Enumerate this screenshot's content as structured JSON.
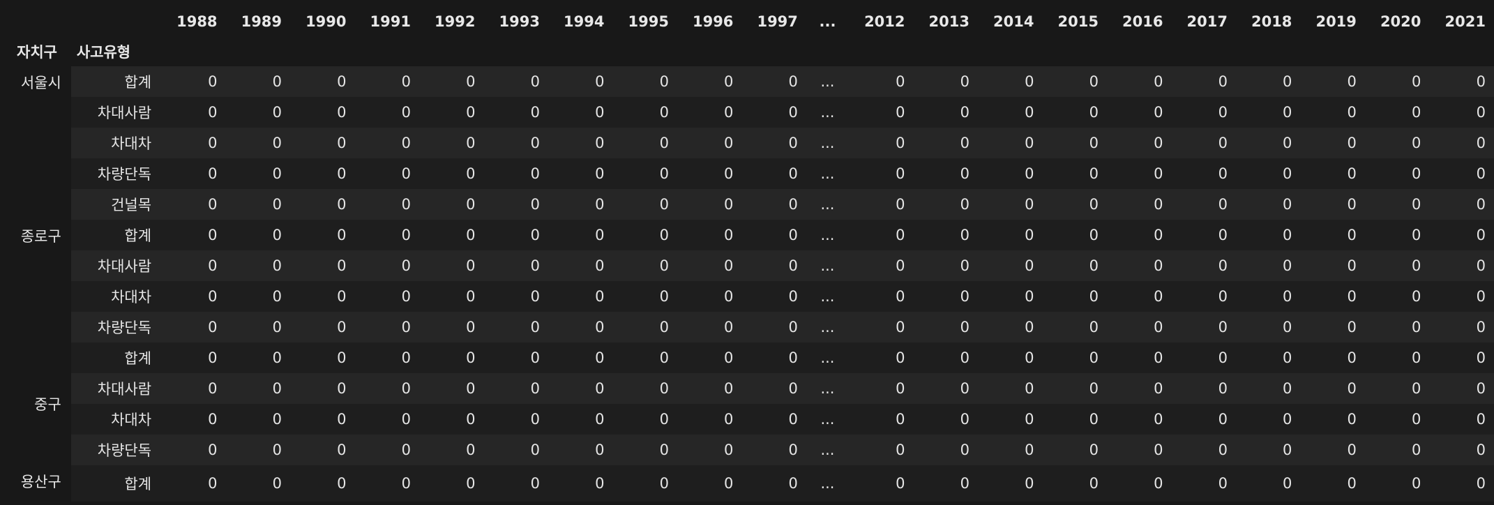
{
  "index_names": [
    "자치구",
    "사고유형"
  ],
  "columns": [
    "1988",
    "1989",
    "1990",
    "1991",
    "1992",
    "1993",
    "1994",
    "1995",
    "1996",
    "1997",
    "...",
    "2012",
    "2013",
    "2014",
    "2015",
    "2016",
    "2017",
    "2018",
    "2019",
    "2020",
    "2021"
  ],
  "groups": [
    {
      "district": "서울시",
      "types": [
        "합계",
        "차대사람",
        "차대차",
        "차량단독",
        "건널목"
      ]
    },
    {
      "district": "종로구",
      "types": [
        "합계",
        "차대사람",
        "차대차",
        "차량단독"
      ]
    },
    {
      "district": "중구",
      "types": [
        "합계",
        "차대사람",
        "차대차",
        "차량단독"
      ]
    },
    {
      "district": "용산구",
      "types": [
        "합계"
      ]
    }
  ],
  "cell_value": "0",
  "ellipsis": "..."
}
